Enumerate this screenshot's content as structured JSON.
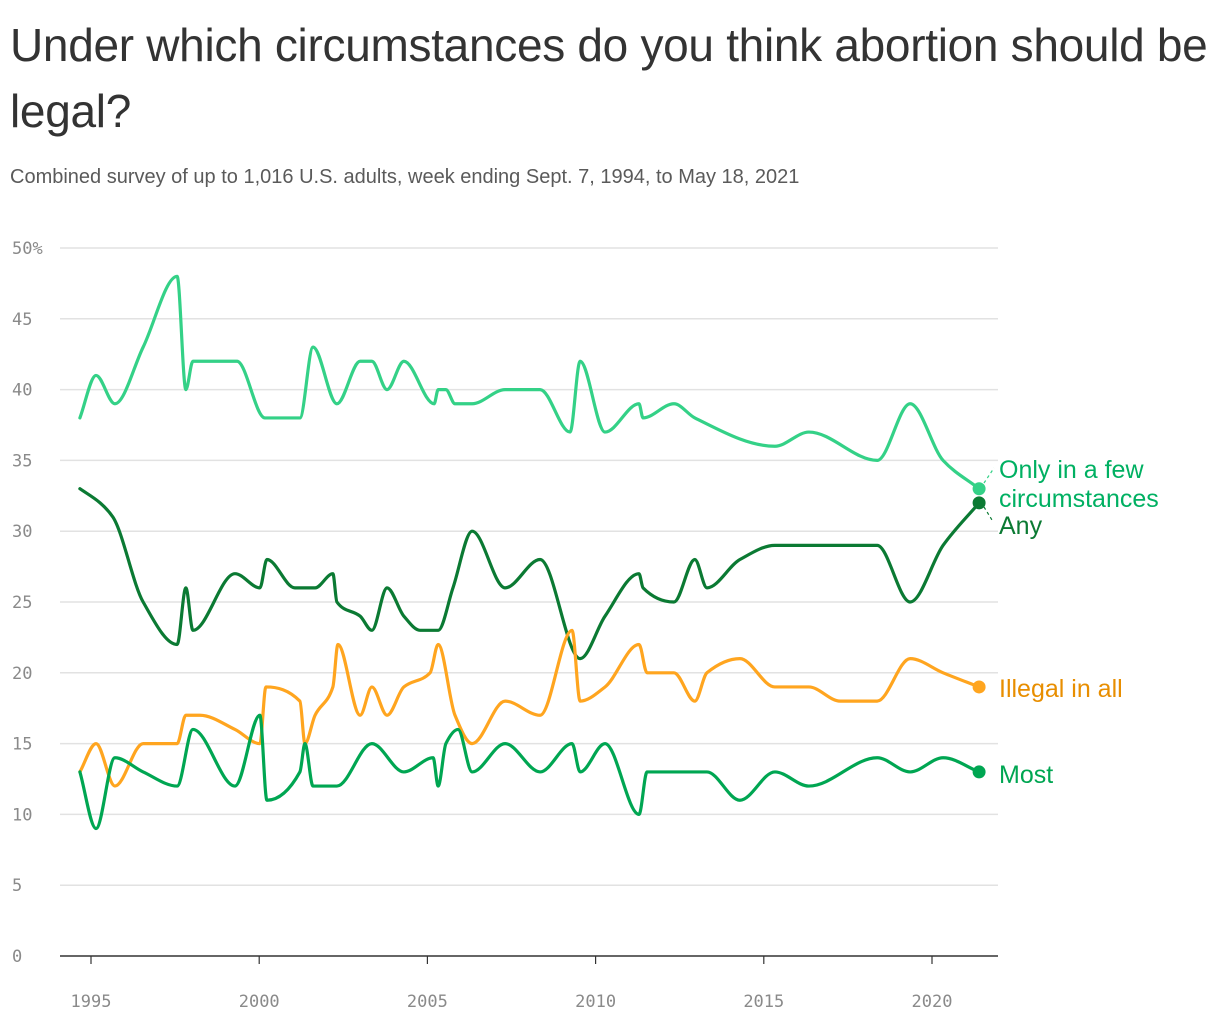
{
  "title": "Under which circumstances do you think abortion should be legal?",
  "subtitle": "Combined survey of up to 1,016 U.S. adults, week ending Sept. 7, 1994, to May 18, 2021",
  "chart_data": {
    "type": "line",
    "title": "Under which circumstances do you think abortion should be legal?",
    "subtitle": "Combined survey of up to 1,016 U.S. adults, week ending Sept. 7, 1994, to May 18, 2021",
    "xlabel": "",
    "ylabel": "",
    "xlim": [
      1994.5,
      2022
    ],
    "ylim": [
      0,
      50
    ],
    "x_ticks": [
      "1995",
      "2000",
      "2005",
      "2010",
      "2015",
      "2020"
    ],
    "x_tick_values": [
      1995,
      2000,
      2005,
      2010,
      2015,
      2020
    ],
    "y_ticks": [
      "0",
      "5",
      "10",
      "15",
      "20",
      "25",
      "30",
      "35",
      "40",
      "45",
      "50%"
    ],
    "y_tick_values": [
      0,
      5,
      10,
      15,
      20,
      25,
      30,
      35,
      40,
      45,
      50
    ],
    "grid": true,
    "legend": "direct labels at line ends (right)",
    "series": [
      {
        "name": "Only in a few circumstances",
        "label_lines": [
          "Only in a few",
          "circumstances"
        ],
        "color": "#34d187",
        "label_color": "#00b062",
        "x": [
          1994.67,
          1995.15,
          1995.71,
          1996.55,
          1997.56,
          1997.82,
          1998.03,
          1999.34,
          2000.17,
          2001.21,
          2001.6,
          2002.31,
          2003.0,
          2003.35,
          2003.8,
          2004.3,
          2005.2,
          2005.32,
          2005.55,
          2005.82,
          2006.33,
          2007.31,
          2008.35,
          2009.24,
          2009.54,
          2010.28,
          2011.29,
          2011.41,
          2012.33,
          2012.95,
          2015.33,
          2016.34,
          2018.37,
          2019.35,
          2020.33,
          2021.4
        ],
        "y": [
          38,
          41,
          39,
          43,
          48,
          40,
          42,
          42,
          38,
          38,
          43,
          39,
          42,
          42,
          40,
          42,
          39,
          40,
          40,
          39,
          39,
          40,
          40,
          37,
          42,
          37,
          39,
          38,
          39,
          38,
          36,
          37,
          35,
          39,
          35,
          33
        ]
      },
      {
        "name": "Any",
        "label_lines": [
          "Any"
        ],
        "color": "#0b7a33",
        "label_color": "#0b7a33",
        "x": [
          1994.67,
          1995.27,
          1995.65,
          1996.55,
          1997.56,
          1997.82,
          1998.03,
          1999.28,
          2000.02,
          2000.23,
          2001.06,
          2001.66,
          2002.19,
          2002.31,
          2003.0,
          2003.35,
          2003.8,
          2004.3,
          2004.78,
          2005.32,
          2005.76,
          2006.33,
          2007.31,
          2008.35,
          2009.54,
          2010.28,
          2011.29,
          2011.41,
          2012.33,
          2012.95,
          2013.31,
          2014.29,
          2015.33,
          2018.37,
          2019.35,
          2020.33,
          2021.4
        ],
        "y": [
          33,
          32,
          31,
          25,
          22,
          26,
          23,
          27,
          26,
          28,
          26,
          26,
          27,
          25,
          24,
          23,
          26,
          24,
          23,
          23,
          26,
          30,
          26,
          28,
          21,
          24,
          27,
          26,
          25,
          28,
          26,
          28,
          29,
          29,
          25,
          29,
          32
        ]
      },
      {
        "name": "Illegal in all",
        "label_lines": [
          "Illegal in all"
        ],
        "color": "#ffa51f",
        "label_color": "#e88e00",
        "x": [
          1994.67,
          1995.15,
          1995.71,
          1996.55,
          1997.56,
          1997.82,
          1998.24,
          1999.28,
          2000.02,
          2000.2,
          2001.21,
          2001.36,
          2001.66,
          2002.19,
          2002.34,
          2003.0,
          2003.35,
          2003.8,
          2004.3,
          2005.08,
          2005.32,
          2005.82,
          2006.33,
          2007.31,
          2008.35,
          2009.3,
          2009.54,
          2010.28,
          2011.29,
          2011.53,
          2012.33,
          2012.95,
          2013.31,
          2014.29,
          2015.33,
          2016.34,
          2017.27,
          2018.37,
          2019.35,
          2020.33,
          2021.4
        ],
        "y": [
          13,
          15,
          12,
          15,
          15,
          17,
          17,
          16,
          15,
          19,
          18,
          15,
          17,
          19,
          22,
          17,
          19,
          17,
          19,
          20,
          22,
          17,
          15,
          18,
          17,
          23,
          18,
          19,
          22,
          20,
          20,
          18,
          20,
          21,
          19,
          19,
          18,
          18,
          21,
          20,
          19
        ]
      },
      {
        "name": "Most",
        "label_lines": [
          "Most"
        ],
        "color": "#00a652",
        "label_color": "#00a652",
        "x": [
          1994.67,
          1995.15,
          1995.71,
          1996.55,
          1997.56,
          1998.03,
          1999.28,
          2000.02,
          2000.23,
          2001.21,
          2001.36,
          2001.6,
          2002.31,
          2003.35,
          2004.3,
          2005.17,
          2005.32,
          2005.55,
          2005.91,
          2006.33,
          2007.31,
          2008.35,
          2009.3,
          2009.54,
          2010.28,
          2011.29,
          2011.53,
          2013.31,
          2014.29,
          2015.33,
          2016.34,
          2018.37,
          2019.35,
          2020.33,
          2021.4
        ],
        "y": [
          13,
          9,
          14,
          13,
          12,
          16,
          12,
          17,
          11,
          13,
          15,
          12,
          12,
          15,
          13,
          14,
          12,
          15,
          16,
          13,
          15,
          13,
          15,
          13,
          15,
          10,
          13,
          13,
          11,
          13,
          12,
          14,
          13,
          14,
          13
        ]
      }
    ]
  }
}
